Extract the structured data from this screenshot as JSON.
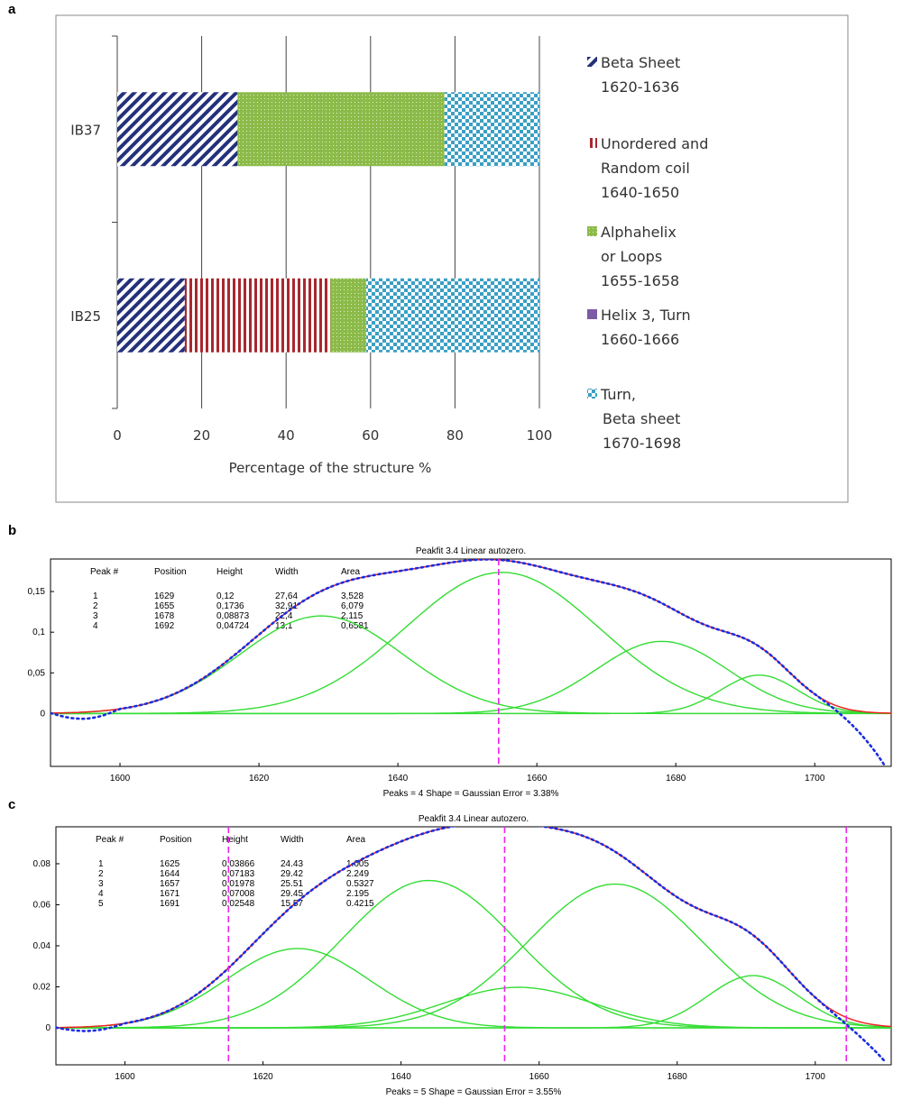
{
  "panels": [
    {
      "label": "a"
    },
    {
      "label": "b"
    },
    {
      "label": "c"
    }
  ],
  "chart_data": [
    {
      "type": "bar",
      "stacked": true,
      "orientation": "horizontal",
      "categories": [
        "IB37",
        "IB25"
      ],
      "xlabel": "Percentage of the structure %",
      "xlim": [
        0,
        100
      ],
      "xticks": [
        0,
        20,
        40,
        60,
        80,
        100
      ],
      "grid": true,
      "legend_position": "right",
      "series": [
        {
          "legend": [
            "Beta Sheet",
            "1620-1636"
          ],
          "pattern": "diagonal",
          "color": "#23307a",
          "values": [
            28.5,
            16
          ]
        },
        {
          "legend": [
            "Unordered and",
            "Random coil",
            "1640-1650"
          ],
          "pattern": "vertical",
          "color": "#a8282e",
          "values": [
            0,
            34.5
          ]
        },
        {
          "legend": [
            "Alphahelix",
            "or Loops",
            "1655-1658"
          ],
          "pattern": "dots",
          "color": "#8cbb4a",
          "values": [
            49,
            8.5
          ]
        },
        {
          "legend": [
            "Helix 3, Turn",
            "1660-1666"
          ],
          "pattern": "solid",
          "color": "#7d5aa6",
          "values": [
            0,
            0
          ]
        },
        {
          "legend": [
            "Turn,",
            "Beta sheet",
            "1670-1698"
          ],
          "pattern": "checker",
          "color": "#3b9fc4",
          "values": [
            22.5,
            41
          ]
        }
      ]
    },
    {
      "type": "line",
      "title": "Peakfit 3.4 Linear autozero.",
      "footer": "Peaks = 4     Shape = Gaussian     Error = 3.38%",
      "xlim": [
        1590,
        1711
      ],
      "ylim": [
        -0.065,
        0.19
      ],
      "xticks": [
        1600,
        1620,
        1640,
        1660,
        1680,
        1700
      ],
      "yticks": [
        0,
        0.05,
        0.1,
        0.15
      ],
      "ytick_labels": [
        "0",
        "0,05",
        "0,1",
        "0,15"
      ],
      "table_headers": [
        "Peak #",
        "Position",
        "Height",
        "Width",
        "Area"
      ],
      "table_rows": [
        [
          "1",
          "1629",
          "0,12",
          "27,64",
          "3,528"
        ],
        [
          "2",
          "1655",
          "0,1736",
          "32,91",
          "6,079"
        ],
        [
          "3",
          "1678",
          "0,08873",
          "22,4",
          "2,115"
        ],
        [
          "4",
          "1692",
          "0,04724",
          "13,1",
          "0,6581"
        ]
      ],
      "peaks": [
        {
          "center": 1629,
          "height": 0.12,
          "width": 27.64
        },
        {
          "center": 1655,
          "height": 0.1736,
          "width": 32.91
        },
        {
          "center": 1678,
          "height": 0.08873,
          "width": 22.4
        },
        {
          "center": 1692,
          "height": 0.04724,
          "width": 13.1
        }
      ],
      "markers": [
        1654.5
      ],
      "data_end": [
        1710,
        -0.063
      ],
      "colors": {
        "components": "#33dd33",
        "fit": "#ee2222",
        "data": "#1a2ee0",
        "marker": "#ee22ee"
      }
    },
    {
      "type": "line",
      "title": "Peakfit 3.4 Linear autozero.",
      "footer": "Peaks = 5     Shape = Gaussian     Error = 3.55%",
      "xlim": [
        1590,
        1711
      ],
      "ylim": [
        -0.018,
        0.098
      ],
      "xticks": [
        1600,
        1620,
        1640,
        1660,
        1680,
        1700
      ],
      "yticks": [
        0,
        0.02,
        0.04,
        0.06,
        0.08
      ],
      "ytick_labels": [
        "0",
        "0.02",
        "0.04",
        "0.06",
        "0.08"
      ],
      "table_headers": [
        "Peak #",
        "Position",
        "Height",
        "Width",
        "Area"
      ],
      "table_rows": [
        [
          "1",
          "1625",
          "0.03866",
          "24.43",
          "1.005"
        ],
        [
          "2",
          "1644",
          "0.07183",
          "29.42",
          "2.249"
        ],
        [
          "3",
          "1657",
          "0.01978",
          "25.51",
          "0.5327"
        ],
        [
          "4",
          "1671",
          "0.07008",
          "29.45",
          "2.195"
        ],
        [
          "5",
          "1691",
          "0.02548",
          "15.57",
          "0.4215"
        ]
      ],
      "peaks": [
        {
          "center": 1625,
          "height": 0.03866,
          "width": 24.43
        },
        {
          "center": 1644,
          "height": 0.07183,
          "width": 29.42
        },
        {
          "center": 1657,
          "height": 0.01978,
          "width": 25.51
        },
        {
          "center": 1671,
          "height": 0.07008,
          "width": 29.45
        },
        {
          "center": 1691,
          "height": 0.02548,
          "width": 15.57
        }
      ],
      "markers": [
        1615,
        1655,
        1704.5
      ],
      "data_end": [
        1710,
        -0.016
      ],
      "colors": {
        "components": "#33dd33",
        "fit": "#ee2222",
        "data": "#1a2ee0",
        "marker": "#ee22ee"
      }
    }
  ]
}
